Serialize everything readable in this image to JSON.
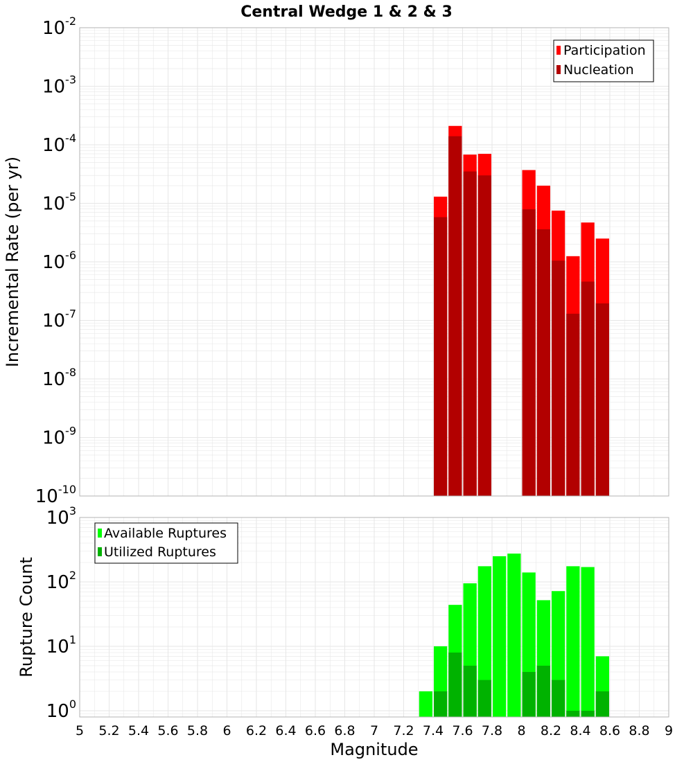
{
  "title": "Central Wedge 1 & 2 & 3",
  "xlabel": "Magnitude",
  "colors": {
    "participation": "#ff0000",
    "nucleation": "#b20000",
    "available": "#00ff00",
    "utilized": "#00b200",
    "grid": "#e6e6e6",
    "frame": "#b3b3b3"
  },
  "chart_data": [
    {
      "type": "bar",
      "panel": "top",
      "ylabel": "Incremental Rate (per yr)",
      "yscale": "log",
      "xlim": [
        5,
        9
      ],
      "ylim": [
        1e-10,
        0.01
      ],
      "x": [
        7.45,
        7.55,
        7.65,
        7.75,
        8.05,
        8.15,
        8.25,
        8.35,
        8.45,
        8.55
      ],
      "series": [
        {
          "name": "Participation",
          "values": [
            1.3e-05,
            0.00021,
            6.8e-05,
            7e-05,
            3.7e-05,
            2e-05,
            7.5e-06,
            1.25e-06,
            4.7e-06,
            2.5e-06
          ]
        },
        {
          "name": "Nucleation",
          "values": [
            5.8e-06,
            0.00014,
            3.5e-05,
            3e-05,
            7.9e-06,
            3.6e-06,
            1.05e-06,
            1.3e-07,
            4.6e-07,
            1.95e-07
          ]
        }
      ],
      "legend": "top-right",
      "grid": true
    },
    {
      "type": "bar",
      "panel": "bottom",
      "ylabel": "Rupture Count",
      "yscale": "log",
      "xlim": [
        5,
        9
      ],
      "ylim": [
        0.8,
        1000
      ],
      "x": [
        7.35,
        7.45,
        7.55,
        7.65,
        7.75,
        7.85,
        7.95,
        8.05,
        8.15,
        8.25,
        8.35,
        8.45,
        8.55
      ],
      "series": [
        {
          "name": "Available Ruptures",
          "values": [
            2,
            10,
            44,
            95,
            175,
            250,
            275,
            140,
            52,
            72,
            175,
            170,
            7
          ]
        },
        {
          "name": "Utilized Ruptures",
          "values": [
            null,
            2,
            8,
            5,
            3,
            null,
            null,
            4,
            5,
            3,
            1,
            1,
            2
          ]
        }
      ],
      "legend": "top-left",
      "grid": true
    }
  ],
  "top_ticks": [
    {
      "mant": "10",
      "exp": "-10"
    },
    {
      "mant": "10",
      "exp": "-9"
    },
    {
      "mant": "10",
      "exp": "-8"
    },
    {
      "mant": "10",
      "exp": "-7"
    },
    {
      "mant": "10",
      "exp": "-6"
    },
    {
      "mant": "10",
      "exp": "-5"
    },
    {
      "mant": "10",
      "exp": "-4"
    },
    {
      "mant": "10",
      "exp": "-3"
    },
    {
      "mant": "10",
      "exp": "-2"
    }
  ],
  "bottom_ticks": [
    {
      "mant": "10",
      "exp": "0"
    },
    {
      "mant": "10",
      "exp": "1"
    },
    {
      "mant": "10",
      "exp": "2"
    },
    {
      "mant": "10",
      "exp": "3"
    }
  ],
  "x_ticks": [
    "5",
    "5.2",
    "5.4",
    "5.6",
    "5.8",
    "6",
    "6.2",
    "6.4",
    "6.6",
    "6.8",
    "7",
    "7.2",
    "7.4",
    "7.6",
    "7.8",
    "8",
    "8.2",
    "8.4",
    "8.6",
    "8.8",
    "9"
  ]
}
